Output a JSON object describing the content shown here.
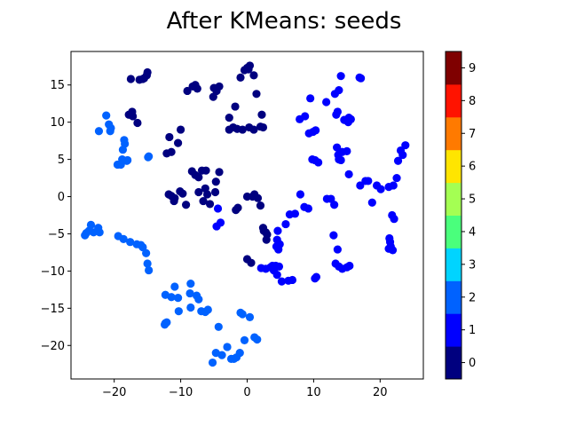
{
  "chart_data": {
    "type": "scatter",
    "title": "After KMeans: seeds",
    "xlabel": "",
    "ylabel": "",
    "xlim": [
      -26.5,
      26.5
    ],
    "ylim": [
      -24.5,
      19.5
    ],
    "xticks": [
      -20,
      -10,
      0,
      10,
      20
    ],
    "yticks": [
      -20,
      -15,
      -10,
      -5,
      0,
      5,
      10,
      15
    ],
    "grid": false,
    "colorbar": {
      "range": [
        -0.5,
        9.5
      ],
      "ticks": [
        0,
        1,
        2,
        3,
        4,
        5,
        6,
        7,
        8,
        9
      ],
      "colors": [
        "#00007f",
        "#0000ff",
        "#0062ff",
        "#00d4ff",
        "#4aff7c",
        "#a4ff53",
        "#ffe500",
        "#ff7a00",
        "#ff1300",
        "#7f0000"
      ]
    },
    "series": [
      {
        "cluster": 0,
        "color": "#00007f",
        "x": [
          -17.5,
          -17.2,
          -17.8,
          -17.3,
          -16.5,
          -15.7,
          -15.1,
          -15.0,
          -15.5,
          -16.2,
          -12.1,
          -11.4,
          -11.7,
          -10.4,
          -10.0,
          -9.0,
          -8.2,
          -7.8,
          -7.5,
          -5.0,
          -4.6,
          -4.2,
          -5.1,
          -2.7,
          -2.1,
          -1.5,
          -2.7,
          -1.8,
          -1.0,
          0.0,
          0.2,
          0.4,
          -0.4,
          1.0,
          1.4,
          2.0,
          1.0,
          0.3,
          -0.7,
          2.4,
          2.2,
          -4.2,
          -4.7,
          -4.8,
          -5.6,
          -6.6,
          -6.0,
          -6.3,
          -7.3,
          -7.8,
          -8.3,
          -6.8,
          -7.3,
          -6.2,
          -9.7,
          -10.1,
          -9.2,
          -11.0,
          -11.8,
          -10.9,
          -11.4,
          -1.7,
          -1.4,
          0.0,
          0.8,
          1.1,
          1.6,
          2.0,
          2.4,
          2.8,
          3.0,
          2.5,
          2.9,
          0.0,
          0.6
        ],
        "y": [
          15.8,
          10.8,
          11.0,
          11.4,
          9.9,
          15.8,
          16.3,
          16.7,
          15.9,
          15.7,
          5.8,
          6.0,
          8.0,
          7.2,
          9.0,
          14.2,
          14.8,
          15.0,
          14.5,
          14.6,
          14.2,
          14.8,
          13.4,
          10.6,
          9.3,
          9.1,
          9.0,
          12.1,
          16.0,
          17.3,
          17.1,
          17.6,
          17.0,
          16.3,
          13.8,
          9.4,
          9.0,
          9.3,
          9.0,
          9.3,
          11.0,
          3.3,
          2.0,
          0.6,
          -1.0,
          -0.6,
          0.3,
          1.1,
          0.6,
          2.9,
          3.4,
          3.5,
          2.6,
          3.5,
          0.4,
          0.7,
          -1.1,
          -0.6,
          0.3,
          -0.2,
          0.1,
          -1.8,
          -1.5,
          0.0,
          0.0,
          0.3,
          -0.2,
          -1.2,
          -4.2,
          -4.8,
          -5.1,
          -4.6,
          -5.8,
          -8.4,
          -8.9
        ]
      },
      {
        "cluster": 1,
        "color": "#0000ff",
        "x": [
          -4.0,
          -4.4,
          -4.6,
          2.1,
          2.8,
          3.5,
          3.8,
          4.0,
          4.5,
          5.2,
          6.2,
          6.8,
          7.9,
          8.7,
          9.5,
          9.3,
          9.9,
          10.3,
          11.9,
          13.2,
          13.8,
          14.1,
          13.6,
          13.4,
          14.6,
          15.3,
          15.6,
          15.2,
          13.5,
          13.7,
          14.1,
          13.8,
          14.3,
          15.0,
          15.3,
          16.9,
          17.1,
          17.8,
          17.0,
          9.8,
          10.2,
          10.7,
          8.0,
          7.2,
          6.4,
          5.8,
          4.6,
          4.5,
          4.3,
          4.4,
          4.7,
          4.8,
          4.9,
          10.2,
          10.4,
          8.6,
          9.2,
          12.0,
          12.6,
          13.1,
          13.0,
          13.6,
          13.3,
          13.8,
          14.3,
          15.0,
          15.4,
          18.2,
          19.5,
          20.1,
          21.3,
          22.0,
          22.5,
          22.7,
          23.1,
          23.4,
          23.8,
          21.4,
          21.5,
          21.6,
          21.8,
          21.3,
          21.9,
          22.1,
          18.8
        ],
        "y": [
          -3.5,
          -1.6,
          -4.0,
          -9.6,
          -9.7,
          -9.5,
          -9.3,
          -9.9,
          -10.5,
          -11.4,
          -11.3,
          -11.2,
          10.4,
          10.8,
          13.2,
          8.5,
          8.7,
          8.9,
          12.7,
          13.8,
          14.3,
          16.2,
          11.4,
          11.0,
          10.3,
          10.6,
          10.4,
          10.0,
          6.6,
          5.6,
          4.9,
          5.0,
          6.0,
          6.1,
          3.0,
          16.0,
          15.9,
          2.1,
          1.5,
          5.0,
          4.9,
          4.6,
          0.3,
          -2.3,
          -2.4,
          -3.7,
          -4.6,
          -5.8,
          -9.3,
          -6.7,
          -7.1,
          -9.4,
          -6.4,
          -11.0,
          -10.8,
          -1.4,
          -1.6,
          -0.3,
          -0.3,
          -1.1,
          -5.2,
          -7.1,
          -9.0,
          -9.4,
          -9.7,
          -9.5,
          -9.3,
          2.1,
          1.5,
          1.0,
          1.3,
          1.5,
          2.5,
          4.8,
          6.2,
          5.6,
          6.9,
          -5.6,
          -6.1,
          -6.7,
          -2.5,
          -7.0,
          -7.2,
          -3.0,
          -0.8
        ]
      },
      {
        "cluster": 2,
        "color": "#0062ff",
        "x": [
          -21.2,
          -20.8,
          -20.5,
          -20.6,
          -22.3,
          -18.5,
          -18.4,
          -18.7,
          -18.8,
          -19.0,
          -19.5,
          -18.0,
          -18.1,
          -14.8,
          -14.9,
          -19.4,
          -18.6,
          -17.6,
          -16.6,
          -16.0,
          -15.7,
          -15.2,
          -15.0,
          -14.8,
          -24.4,
          -24.2,
          -23.8,
          -23.5,
          -23.1,
          -22.2,
          -22.4,
          -12.3,
          -12.1,
          -11.4,
          -10.9,
          -10.4,
          -10.3,
          -8.5,
          -8.6,
          -8.5,
          -7.6,
          -7.3,
          -6.9,
          -6.3,
          -5.9,
          -4.3,
          -4.7,
          -3.8,
          -3.0,
          -2.4,
          -2.0,
          -1.6,
          -1.1,
          -1.0,
          -0.7,
          -0.4,
          0.4,
          1.1,
          1.5,
          -12.3,
          -12.4,
          -5.2
        ],
        "y": [
          10.9,
          9.7,
          9.2,
          8.8,
          8.8,
          7.6,
          7.1,
          6.3,
          5.0,
          4.3,
          4.3,
          4.9,
          4.8,
          5.4,
          5.3,
          -5.3,
          -5.7,
          -6.1,
          -6.4,
          -6.5,
          -6.8,
          -7.6,
          -9.0,
          -9.9,
          -5.2,
          -4.9,
          -4.6,
          -3.8,
          -4.8,
          -4.8,
          -4.2,
          -13.2,
          -16.9,
          -13.5,
          -12.1,
          -13.6,
          -15.4,
          -11.7,
          -13.0,
          -14.9,
          -13.3,
          -13.8,
          -15.4,
          -15.5,
          -15.2,
          -17.5,
          -21.0,
          -21.3,
          -20.2,
          -21.8,
          -21.8,
          -21.6,
          -21.0,
          -15.6,
          -15.8,
          -19.3,
          -16.2,
          -18.9,
          -19.2,
          -17.0,
          -17.2,
          -22.3
        ]
      }
    ]
  }
}
